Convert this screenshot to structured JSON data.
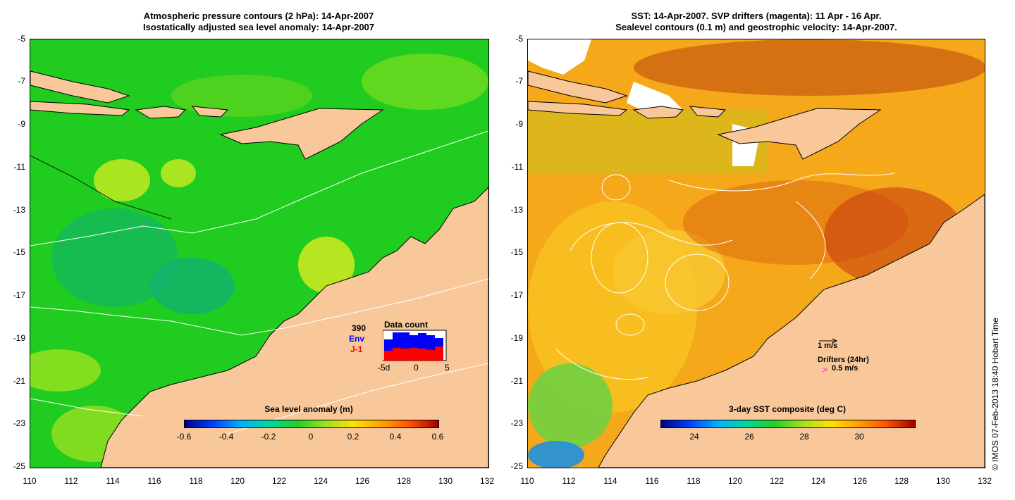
{
  "left_panel": {
    "title_line1": "Atmospheric pressure contours (2 hPa): 14-Apr-2007",
    "title_line2": "Isostatically adjusted sea level anomaly: 14-Apr-2007",
    "colorbar_title": "Sea level anomaly (m)",
    "colorbar_ticks": [
      "-0.6",
      "-0.4",
      "-0.2",
      "0",
      "0.2",
      "0.4",
      "0.6"
    ],
    "data_count": {
      "total": "390",
      "env_label": "Env",
      "j1_label": "J-1",
      "title": "Data count",
      "axis_ticks": [
        "-5d",
        "0",
        "5"
      ]
    }
  },
  "right_panel": {
    "title_line1": "SST: 14-Apr-2007. SVP drifters (magenta): 11 Apr - 16 Apr.",
    "title_line2": "Sealevel contours (0.1 m) and geostrophic velocity: 14-Apr-2007.",
    "colorbar_title": "3-day SST composite (deg C)",
    "colorbar_ticks": [
      "24",
      "26",
      "28",
      "30"
    ],
    "velocity_scale_label": "1 m/s",
    "drifters_label": "Drifters (24hr)",
    "drifter_scale_symbol": ">",
    "drifter_scale_label": "0.5 m/s"
  },
  "y_ticks": [
    "-5",
    "-7",
    "-9",
    "-11",
    "-13",
    "-15",
    "-17",
    "-19",
    "-21",
    "-23",
    "-25"
  ],
  "x_ticks": [
    "110",
    "112",
    "114",
    "116",
    "118",
    "120",
    "122",
    "124",
    "126",
    "128",
    "130",
    "132"
  ],
  "credit": "© IMOS 07-Feb-2013 18:40 Hobart Time",
  "colors": {
    "land": "#f8c89a",
    "sla_ocean": "#22d022",
    "sst_ocean": "#f0a020",
    "drifter": "#ff00ff",
    "env": "#0000ff",
    "j1": "#ff0000"
  }
}
